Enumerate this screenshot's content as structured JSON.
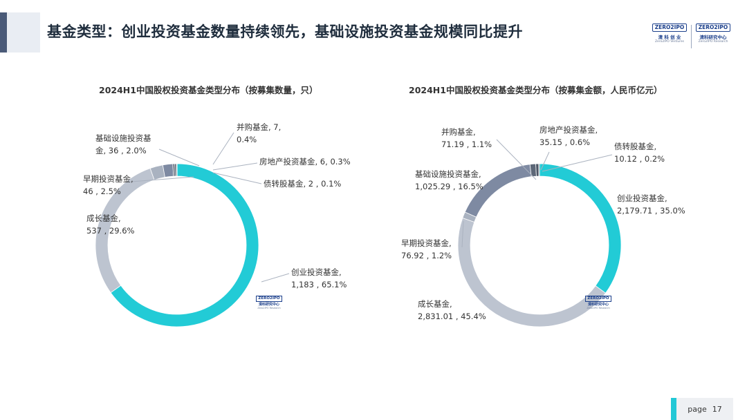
{
  "header": {
    "title": "基金类型：创业投资基金数量持续领先，基础设施投资基金规模同比提升",
    "logo_primary": {
      "box": "ZERO2IPO",
      "cn": "清 科 创 业",
      "en": "Zero2IPO Ventures"
    },
    "logo_secondary": {
      "box": "ZERO2IPO",
      "cn": "清科研究中心",
      "en": "Zero2IPO Research"
    }
  },
  "watermark": {
    "box": "ZERO2IPO",
    "cn": "清科研究中心",
    "en": "Zero2IPO Research"
  },
  "colors": {
    "创业投资基金": "#22cbd6",
    "成长基金": "#bdc4d0",
    "早期投资基金": "#a9b2c0",
    "基础设施投资基金": "#7e8aa2",
    "并购基金": "#5d6878",
    "房地产投资基金": "#4b5565",
    "债转股基金": "#3a4350",
    "leader": "#aab2bf"
  },
  "chart_data": [
    {
      "type": "pie",
      "donut": true,
      "title": "2024H1中国股权投资基金类型分布（按募集数量，只）",
      "slices": [
        {
          "name": "创业投资基金",
          "value": 1183,
          "value_label": "1,183",
          "pct": 65.1,
          "pct_label": "65.1%",
          "label_line1": "创业投资基金,",
          "label_line2": "1,183 , 65.1%"
        },
        {
          "name": "成长基金",
          "value": 537,
          "value_label": "537",
          "pct": 29.6,
          "pct_label": "29.6%",
          "label_line1": "成长基金,",
          "label_line2": "537 , 29.6%"
        },
        {
          "name": "早期投资基金",
          "value": 46,
          "value_label": "46",
          "pct": 2.5,
          "pct_label": "2.5%",
          "label_line1": "早期投资基金,",
          "label_line2": "46 , 2.5%"
        },
        {
          "name": "基础设施投资基金",
          "value": 36,
          "value_label": "36",
          "pct": 2.0,
          "pct_label": "2.0%",
          "label_line1": "基础设施投资基",
          "label_line2": "金, 36 , 2.0%"
        },
        {
          "name": "并购基金",
          "value": 7,
          "value_label": "7",
          "pct": 0.4,
          "pct_label": "0.4%",
          "label_line1": "并购基金, 7,",
          "label_line2": "0.4%"
        },
        {
          "name": "房地产投资基金",
          "value": 6,
          "value_label": "6",
          "pct": 0.3,
          "pct_label": "0.3%",
          "label_line1": "房地产投资基金, 6, 0.3%",
          "label_line2": ""
        },
        {
          "name": "债转股基金",
          "value": 2,
          "value_label": "2",
          "pct": 0.1,
          "pct_label": "0.1%",
          "label_line1": "债转股基金, 2 , 0.1%",
          "label_line2": ""
        }
      ]
    },
    {
      "type": "pie",
      "donut": true,
      "title": "2024H1中国股权投资基金类型分布（按募集金额，人民币亿元）",
      "slices": [
        {
          "name": "创业投资基金",
          "value": 2179.71,
          "value_label": "2,179.71",
          "pct": 35.0,
          "pct_label": "35.0%",
          "label_line1": "创业投资基金,",
          "label_line2": "2,179.71 , 35.0%"
        },
        {
          "name": "成长基金",
          "value": 2831.01,
          "value_label": "2,831.01",
          "pct": 45.4,
          "pct_label": "45.4%",
          "label_line1": "成长基金,",
          "label_line2": "2,831.01 , 45.4%"
        },
        {
          "name": "早期投资基金",
          "value": 76.92,
          "value_label": "76.92",
          "pct": 1.2,
          "pct_label": "1.2%",
          "label_line1": "早期投资基金,",
          "label_line2": "76.92 , 1.2%"
        },
        {
          "name": "基础设施投资基金",
          "value": 1025.29,
          "value_label": "1,025.29",
          "pct": 16.5,
          "pct_label": "16.5%",
          "label_line1": "基础设施投资基金,",
          "label_line2": "1,025.29 , 16.5%"
        },
        {
          "name": "并购基金",
          "value": 71.19,
          "value_label": "71.19",
          "pct": 1.1,
          "pct_label": "1.1%",
          "label_line1": "并购基金,",
          "label_line2": "71.19 , 1.1%"
        },
        {
          "name": "房地产投资基金",
          "value": 35.15,
          "value_label": "35.15",
          "pct": 0.6,
          "pct_label": "0.6%",
          "label_line1": "房地产投资基金,",
          "label_line2": "35.15 , 0.6%"
        },
        {
          "name": "债转股基金",
          "value": 10.12,
          "value_label": "10.12",
          "pct": 0.2,
          "pct_label": "0.2%",
          "label_line1": "债转股基金,",
          "label_line2": "10.12 , 0.2%"
        }
      ]
    }
  ],
  "footer": {
    "page_label": "page",
    "page_number": "17"
  }
}
